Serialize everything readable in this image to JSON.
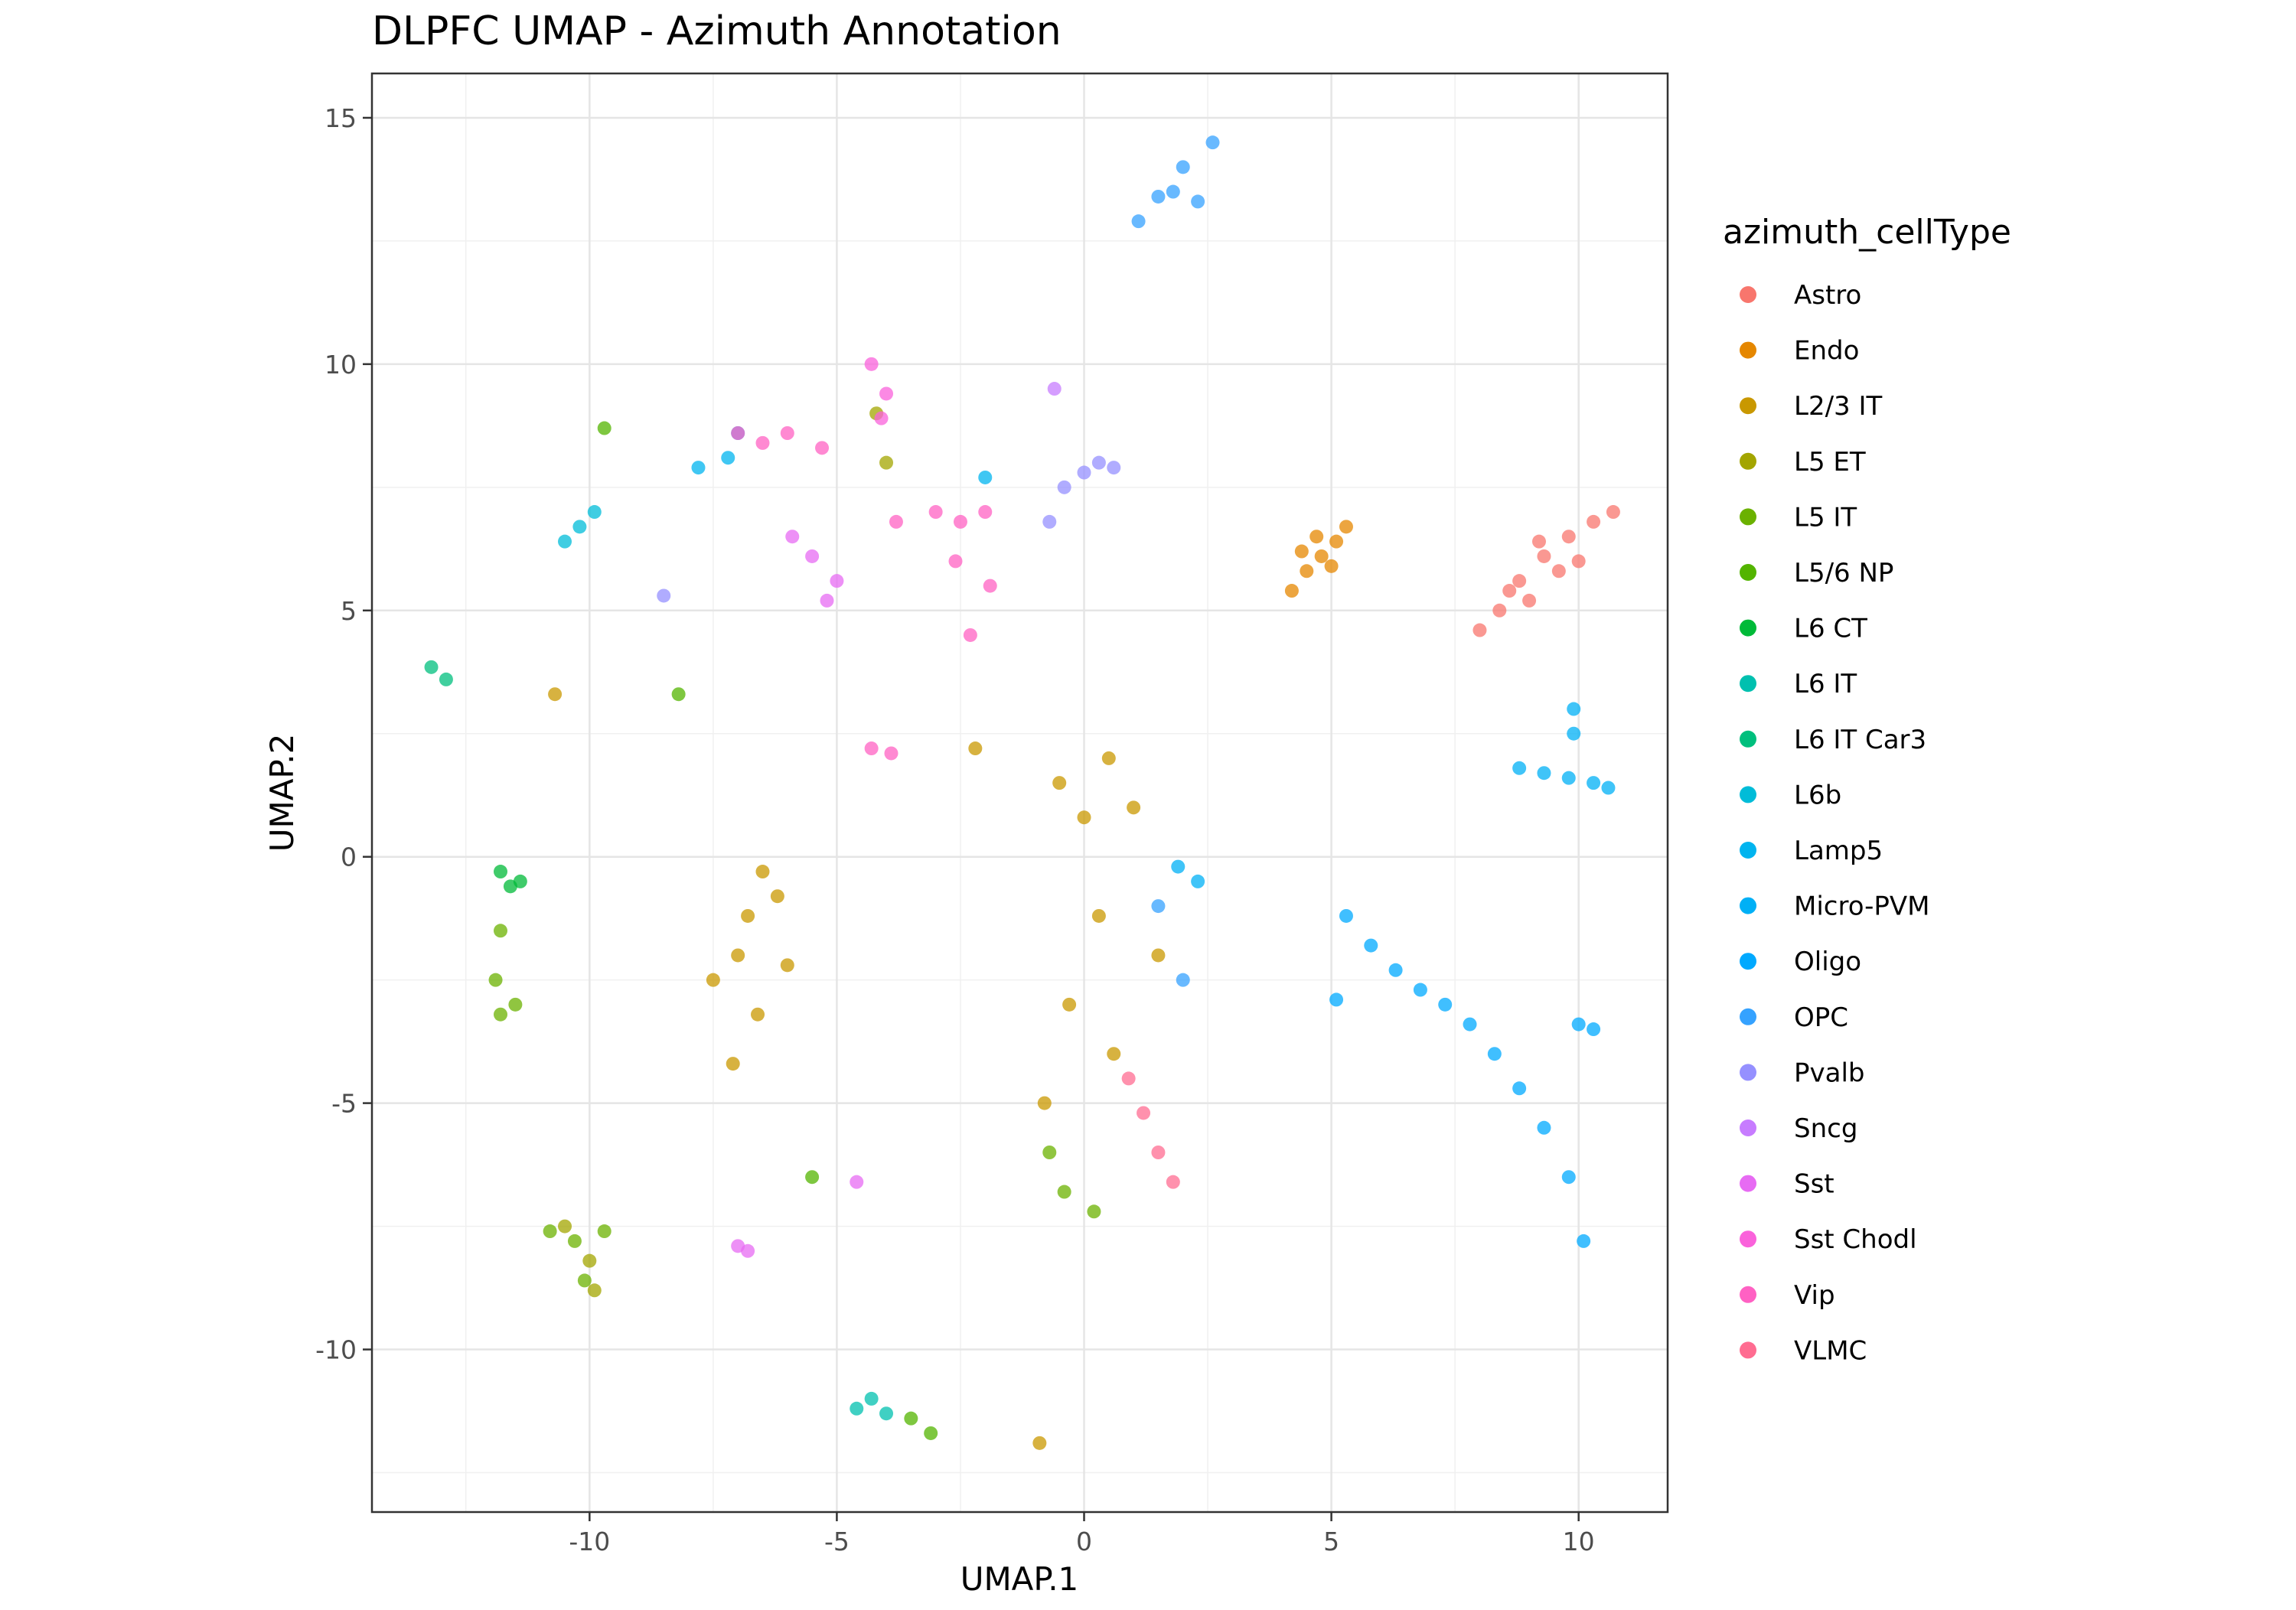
{
  "chart_data": {
    "type": "scatter",
    "title": "DLPFC UMAP - Azimuth Annotation",
    "xlabel": "UMAP.1",
    "ylabel": "UMAP.2",
    "xlim": [
      -14.4,
      11.8
    ],
    "ylim": [
      -13.3,
      15.9
    ],
    "xticks": [
      -10,
      -5,
      0,
      5,
      10
    ],
    "yticks": [
      -10,
      -5,
      0,
      5,
      10,
      15
    ],
    "xtick_labels": [
      "-10",
      "-5",
      "0",
      "5",
      "10"
    ],
    "ytick_labels": [
      "-10",
      "-5",
      "0",
      "5",
      "10",
      "15"
    ],
    "grid": true,
    "legend_title": "azimuth_cellType",
    "legend_position": "right",
    "categories": [
      "Astro",
      "Endo",
      "L2/3 IT",
      "L5 ET",
      "L5 IT",
      "L5/6 NP",
      "L6 CT",
      "L6 IT",
      "L6 IT Car3",
      "L6b",
      "Lamp5",
      "Micro-PVM",
      "Oligo",
      "OPC",
      "Pvalb",
      "Sncg",
      "Sst",
      "Sst Chodl",
      "Vip",
      "VLMC"
    ],
    "colors": [
      "#F8766D",
      "#E58700",
      "#C99800",
      "#A3A500",
      "#6BB100",
      "#00BA38",
      "#00BF7D",
      "#00C0AF",
      "#00BCD8",
      "#00B0F6",
      "#619CFF",
      "#B983FF",
      "#E76BF3",
      "#FD61D1",
      "#FF67A4",
      "#F8766D",
      "#E38900",
      "#C49A00",
      "#99A800",
      "#53B400"
    ],
    "series": [
      {
        "name": "Astro",
        "color": "#F8766D",
        "points": [
          [
            8.0,
            4.6
          ],
          [
            8.4,
            5.0
          ],
          [
            8.8,
            5.6
          ],
          [
            9.3,
            6.1
          ],
          [
            9.8,
            6.5
          ],
          [
            10.3,
            6.8
          ],
          [
            10.7,
            7.0
          ],
          [
            9.0,
            5.2
          ],
          [
            9.6,
            5.8
          ],
          [
            8.6,
            5.4
          ],
          [
            10.0,
            6.0
          ],
          [
            9.2,
            6.4
          ]
        ]
      },
      {
        "name": "Endo",
        "color": "#E58700",
        "points": [
          [
            4.2,
            5.4
          ],
          [
            4.5,
            5.8
          ],
          [
            4.8,
            6.1
          ],
          [
            5.1,
            6.4
          ],
          [
            5.3,
            6.7
          ],
          [
            4.4,
            6.2
          ],
          [
            5.0,
            5.9
          ],
          [
            4.7,
            6.5
          ]
        ]
      },
      {
        "name": "L2/3 IT",
        "color": "#C99800",
        "points": [
          [
            -7.5,
            -2.5
          ],
          [
            -7.0,
            -2.0
          ],
          [
            -6.8,
            -1.2
          ],
          [
            -6.5,
            -0.3
          ],
          [
            -6.2,
            -0.8
          ],
          [
            -6.0,
            -2.2
          ],
          [
            -6.6,
            -3.2
          ],
          [
            -7.1,
            -4.2
          ],
          [
            -0.5,
            1.5
          ],
          [
            0.0,
            0.8
          ],
          [
            0.5,
            2.0
          ],
          [
            1.0,
            1.0
          ],
          [
            0.3,
            -1.2
          ],
          [
            -0.3,
            -3.0
          ],
          [
            -0.8,
            -5.0
          ],
          [
            0.6,
            -4.0
          ],
          [
            1.5,
            -2.0
          ],
          [
            -10.7,
            3.3
          ],
          [
            -0.9,
            -11.9
          ],
          [
            -2.2,
            2.2
          ]
        ]
      },
      {
        "name": "L5 ET",
        "color": "#A3A500",
        "points": [
          [
            -4.2,
            9.0
          ],
          [
            -4.0,
            8.0
          ],
          [
            -10.5,
            -7.5
          ],
          [
            -10.0,
            -8.2
          ],
          [
            -9.9,
            -8.8
          ]
        ]
      },
      {
        "name": "L5 IT",
        "color": "#6BB100",
        "points": [
          [
            -10.8,
            -7.6
          ],
          [
            -10.3,
            -7.8
          ],
          [
            -9.7,
            -7.6
          ],
          [
            -10.1,
            -8.6
          ],
          [
            -11.8,
            -1.5
          ],
          [
            -11.9,
            -2.5
          ],
          [
            -11.8,
            -3.2
          ],
          [
            -11.5,
            -3.0
          ],
          [
            -0.7,
            -6.0
          ],
          [
            -0.4,
            -6.8
          ],
          [
            0.2,
            -7.2
          ]
        ]
      },
      {
        "name": "L5/6 NP",
        "color": "#53B400",
        "points": [
          [
            -9.7,
            8.7
          ],
          [
            -8.2,
            3.3
          ],
          [
            -5.5,
            -6.5
          ],
          [
            -3.5,
            -11.4
          ],
          [
            -3.1,
            -11.7
          ]
        ]
      },
      {
        "name": "L6 CT",
        "color": "#00BA38",
        "points": [
          [
            -11.8,
            -0.3
          ],
          [
            -11.6,
            -0.6
          ],
          [
            -11.4,
            -0.5
          ]
        ]
      },
      {
        "name": "L6 IT",
        "color": "#00C0AF",
        "points": [
          [
            -4.6,
            -11.2
          ],
          [
            -4.3,
            -11.0
          ],
          [
            -4.0,
            -11.3
          ]
        ]
      },
      {
        "name": "L6 IT Car3",
        "color": "#00BF7D",
        "points": [
          [
            -13.2,
            3.85
          ],
          [
            -12.9,
            3.6
          ]
        ]
      },
      {
        "name": "L6b",
        "color": "#00BCD8",
        "points": [
          [
            -10.5,
            6.4
          ],
          [
            -10.2,
            6.7
          ],
          [
            -9.9,
            7.0
          ]
        ]
      },
      {
        "name": "Lamp5",
        "color": "#00B4EF",
        "points": [
          [
            -7.8,
            7.9
          ],
          [
            -7.2,
            8.1
          ],
          [
            -7.0,
            8.6
          ],
          [
            -2.0,
            7.7
          ]
        ]
      },
      {
        "name": "Micro-PVM",
        "color": "#00B0F6",
        "points": [
          [
            8.8,
            1.8
          ],
          [
            9.3,
            1.7
          ],
          [
            9.8,
            1.6
          ],
          [
            10.3,
            1.5
          ],
          [
            10.6,
            1.4
          ],
          [
            9.9,
            2.5
          ],
          [
            9.9,
            3.0
          ],
          [
            1.9,
            -0.2
          ],
          [
            2.3,
            -0.5
          ]
        ]
      },
      {
        "name": "Oligo",
        "color": "#00A9FF",
        "points": [
          [
            5.3,
            -1.2
          ],
          [
            5.8,
            -1.8
          ],
          [
            6.3,
            -2.3
          ],
          [
            6.8,
            -2.7
          ],
          [
            7.3,
            -3.0
          ],
          [
            7.8,
            -3.4
          ],
          [
            8.3,
            -4.0
          ],
          [
            8.8,
            -4.7
          ],
          [
            9.3,
            -5.5
          ],
          [
            9.8,
            -6.5
          ],
          [
            10.1,
            -7.8
          ],
          [
            10.0,
            -3.4
          ],
          [
            10.3,
            -3.5
          ],
          [
            5.1,
            -2.9
          ]
        ]
      },
      {
        "name": "OPC",
        "color": "#35A2FF",
        "points": [
          [
            1.1,
            12.9
          ],
          [
            1.5,
            13.4
          ],
          [
            2.0,
            14.0
          ],
          [
            2.6,
            14.5
          ],
          [
            1.8,
            13.5
          ],
          [
            2.3,
            13.3
          ],
          [
            1.5,
            -1.0
          ],
          [
            2.0,
            -2.5
          ]
        ]
      },
      {
        "name": "Pvalb",
        "color": "#9590FF",
        "points": [
          [
            -0.4,
            7.5
          ],
          [
            0.0,
            7.8
          ],
          [
            0.3,
            8.0
          ],
          [
            0.6,
            7.9
          ],
          [
            -0.7,
            6.8
          ],
          [
            -8.5,
            5.3
          ]
        ]
      },
      {
        "name": "Sncg",
        "color": "#C77CFF",
        "points": [
          [
            -0.6,
            9.5
          ]
        ]
      },
      {
        "name": "Sst",
        "color": "#E76BF3",
        "points": [
          [
            -5.9,
            6.5
          ],
          [
            -5.5,
            6.1
          ],
          [
            -5.0,
            5.6
          ],
          [
            -5.2,
            5.2
          ],
          [
            -4.6,
            -6.6
          ],
          [
            -7.0,
            -7.9
          ],
          [
            -6.8,
            -8.0
          ]
        ]
      },
      {
        "name": "Sst Chodl",
        "color": "#FA62DB",
        "points": [
          [
            -4.3,
            10.0
          ],
          [
            -4.0,
            9.4
          ],
          [
            -4.1,
            8.9
          ]
        ]
      },
      {
        "name": "Vip",
        "color": "#FF61C3",
        "points": [
          [
            -3.8,
            6.8
          ],
          [
            -3.0,
            7.0
          ],
          [
            -2.5,
            6.8
          ],
          [
            -2.0,
            7.0
          ],
          [
            -2.6,
            6.0
          ],
          [
            -1.9,
            5.5
          ],
          [
            -2.3,
            4.5
          ],
          [
            -7.0,
            8.6
          ],
          [
            -6.5,
            8.4
          ],
          [
            -6.0,
            8.6
          ],
          [
            -5.3,
            8.3
          ],
          [
            -4.3,
            2.2
          ],
          [
            -3.9,
            2.1
          ]
        ]
      },
      {
        "name": "VLMC",
        "color": "#FF6C91",
        "points": [
          [
            0.9,
            -4.5
          ],
          [
            1.2,
            -5.2
          ],
          [
            1.5,
            -6.0
          ],
          [
            1.8,
            -6.6
          ]
        ]
      }
    ]
  }
}
